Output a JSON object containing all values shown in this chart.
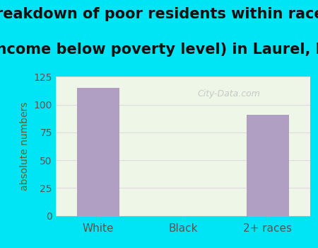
{
  "title_line1": "Breakdown of poor residents within races",
  "title_line2": "(income below poverty level) in Laurel, IN",
  "categories": [
    "White",
    "Black",
    "2+ races"
  ],
  "values": [
    115,
    0,
    91
  ],
  "bar_color": "#b09fc2",
  "ylabel": "absolute numbers",
  "ylim": [
    0,
    125
  ],
  "yticks": [
    0,
    25,
    50,
    75,
    100,
    125
  ],
  "background_outer": "#00e5f5",
  "background_inner": "#eef6e8",
  "title_fontsize": 15,
  "title_color": "#111111",
  "axis_label_color": "#556633",
  "tick_label_color": "#555555",
  "grid_color": "#dddddd",
  "watermark_text": "City-Data.com"
}
